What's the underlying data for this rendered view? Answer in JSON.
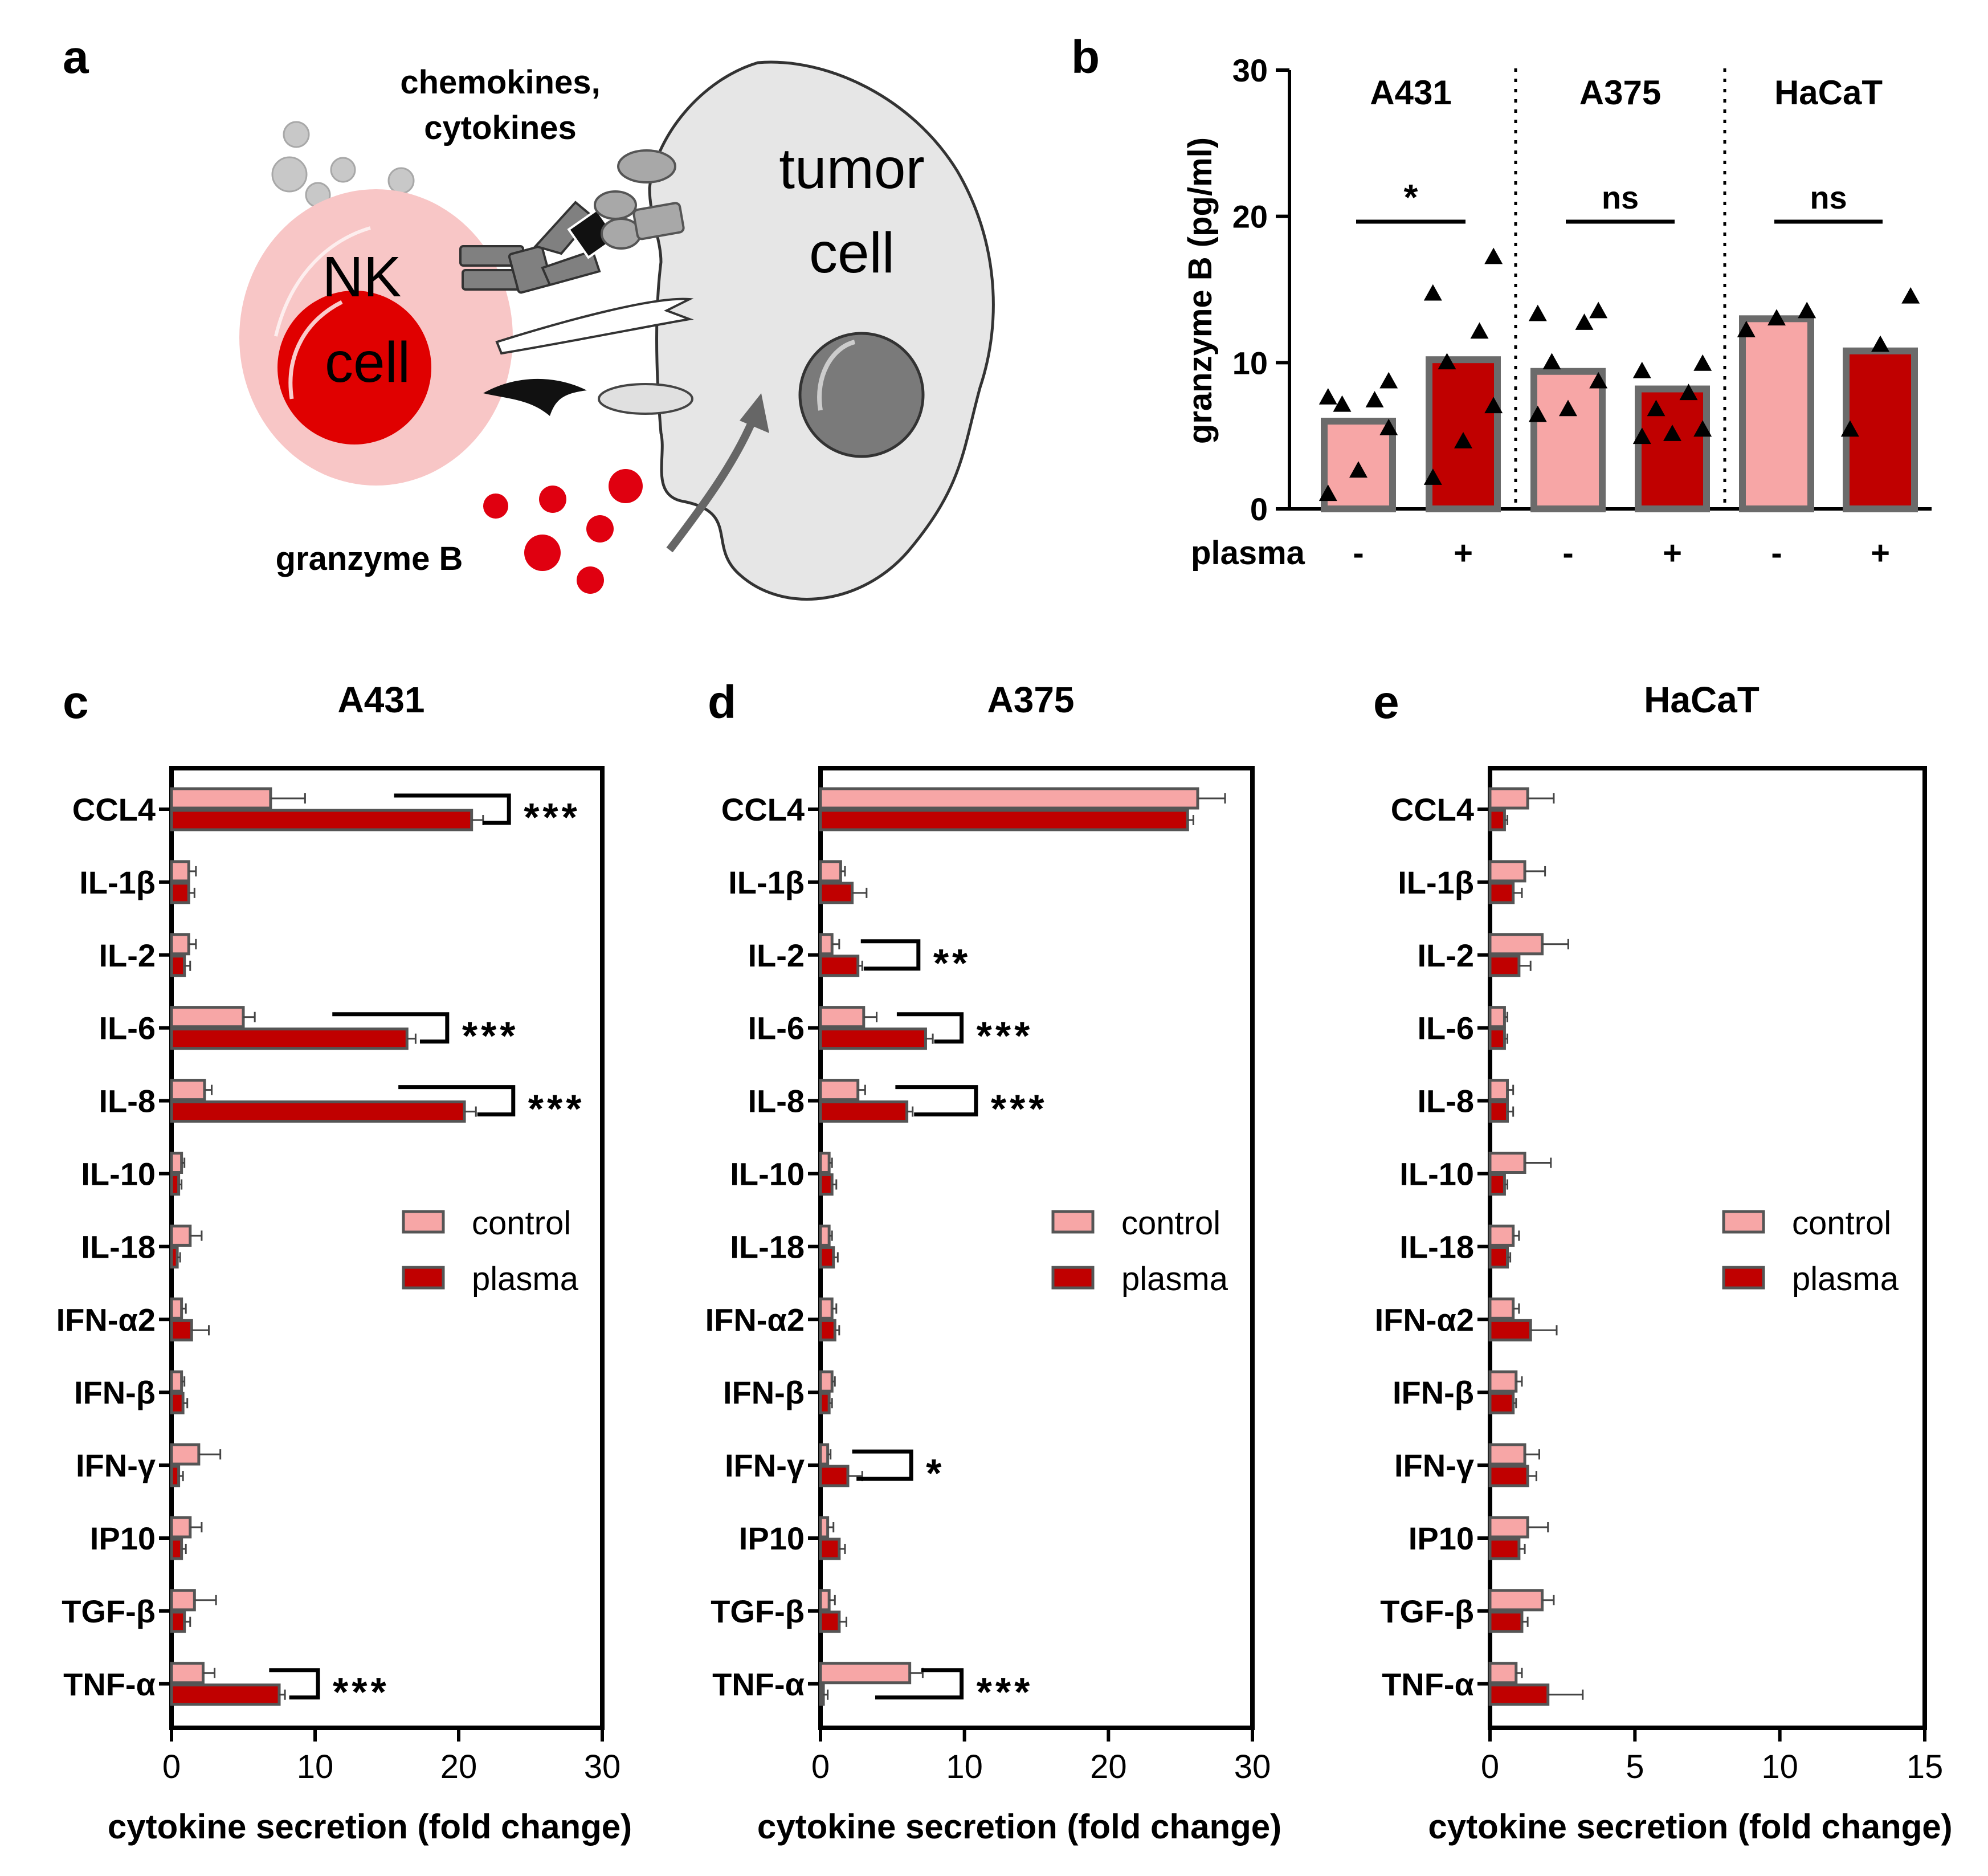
{
  "colors": {
    "control": "#f7a6a6",
    "plasma": "#c00000",
    "bar_edge": "#6b6b6b",
    "axis": "#000000",
    "nk_outer": "#f8c6c6",
    "nk_nucleus": "#e00000",
    "granzyme": "#e00010",
    "tumor": "#e6e6e6",
    "tumor_nucleus": "#7a7a7a",
    "cytokine_dots": "#c8c8c8",
    "receptor_grey": "#7f7f7f",
    "arrow": "#666666"
  },
  "panel_a": {
    "letter": "a",
    "nk_label_1": "NK",
    "nk_label_2": "cell",
    "tumor_label_1": "tumor",
    "tumor_label_2": "cell",
    "chemokines_1": "chemokines,",
    "chemokines_2": "cytokines",
    "granzyme_label": "granzyme B",
    "icons": [
      "cytokine-dots-icon",
      "receptor-icon",
      "ligand-icon",
      "granzyme-dots-icon",
      "arrow-icon"
    ]
  },
  "chart_data": [
    {
      "panel": "b",
      "type": "bar",
      "ylabel": "granzyme B (pg/ml)",
      "ylim": [
        0,
        30
      ],
      "yticks": [
        0,
        10,
        20,
        30
      ],
      "xrow_label": "plasma",
      "groups": [
        {
          "name": "A431",
          "signif": "*",
          "bars": [
            {
              "plasma": "-",
              "value": 6.0,
              "points": [
                1.1,
                2.7,
                5.6,
                7.2,
                7.5,
                7.7,
                8.8
              ]
            },
            {
              "plasma": "+",
              "value": 10.2,
              "points": [
                2.2,
                4.7,
                7.1,
                10.1,
                12.2,
                14.8,
                17.3
              ]
            }
          ]
        },
        {
          "name": "A375",
          "signif": "ns",
          "bars": [
            {
              "plasma": "-",
              "value": 9.4,
              "points": [
                6.5,
                6.9,
                8.8,
                10.1,
                12.8,
                13.4,
                13.6
              ]
            },
            {
              "plasma": "+",
              "value": 8.2,
              "points": [
                5.0,
                5.2,
                5.5,
                6.9,
                8.0,
                9.5,
                10.0
              ]
            }
          ]
        },
        {
          "name": "HaCaT",
          "signif": "ns",
          "bars": [
            {
              "plasma": "-",
              "value": 13.0,
              "points": [
                12.3,
                13.1,
                13.6
              ]
            },
            {
              "plasma": "+",
              "value": 10.8,
              "points": [
                5.5,
                11.3,
                14.6
              ]
            }
          ]
        }
      ]
    },
    {
      "panel": "c",
      "type": "bar",
      "orientation": "horizontal",
      "title": "A431",
      "xlabel": "cytokine secretion (fold change)",
      "xlim": [
        0,
        30
      ],
      "xticks": [
        0,
        10,
        20,
        30
      ],
      "categories": [
        "CCL4",
        "IL-1β",
        "IL-2",
        "IL-6",
        "IL-8",
        "IL-10",
        "IL-18",
        "IFN-α2",
        "IFN-β",
        "IFN-γ",
        "IP10",
        "TGF-β",
        "TNF-α"
      ],
      "series": [
        {
          "name": "control",
          "values": [
            6.9,
            1.2,
            1.2,
            5.0,
            2.3,
            0.7,
            1.3,
            0.7,
            0.7,
            1.9,
            1.3,
            1.6,
            2.2
          ],
          "errors": [
            2.4,
            0.5,
            0.5,
            0.8,
            0.5,
            0.2,
            0.8,
            0.3,
            0.2,
            1.5,
            0.8,
            1.5,
            0.8
          ]
        },
        {
          "name": "plasma",
          "values": [
            20.9,
            1.2,
            0.9,
            16.4,
            20.4,
            0.5,
            0.4,
            1.4,
            0.8,
            0.5,
            0.7,
            0.9,
            7.5
          ],
          "errors": [
            0.8,
            0.4,
            0.4,
            0.6,
            0.8,
            0.2,
            0.2,
            1.2,
            0.3,
            0.3,
            0.3,
            0.4,
            0.4
          ]
        }
      ],
      "legend": [
        "control",
        "plasma"
      ],
      "annotations": [
        {
          "category": "CCL4",
          "text": "***"
        },
        {
          "category": "IL-6",
          "text": "***"
        },
        {
          "category": "IL-8",
          "text": "***"
        },
        {
          "category": "TNF-α",
          "text": "***"
        }
      ]
    },
    {
      "panel": "d",
      "type": "bar",
      "orientation": "horizontal",
      "title": "A375",
      "xlabel": "cytokine secretion (fold change)",
      "xlim": [
        0,
        30
      ],
      "xticks": [
        0,
        10,
        20,
        30
      ],
      "categories": [
        "CCL4",
        "IL-1β",
        "IL-2",
        "IL-6",
        "IL-8",
        "IL-10",
        "IL-18",
        "IFN-α2",
        "IFN-β",
        "IFN-γ",
        "IP10",
        "TGF-β",
        "TNF-α"
      ],
      "series": [
        {
          "name": "control",
          "values": [
            26.2,
            1.4,
            0.8,
            3.0,
            2.6,
            0.6,
            0.6,
            0.8,
            0.8,
            0.5,
            0.5,
            0.6,
            6.2
          ],
          "errors": [
            1.9,
            0.3,
            0.5,
            0.9,
            0.5,
            0.2,
            0.2,
            0.3,
            0.2,
            0.2,
            0.4,
            0.4,
            0.9
          ]
        },
        {
          "name": "plasma",
          "values": [
            25.5,
            2.2,
            2.6,
            7.3,
            6.0,
            0.8,
            0.9,
            1.0,
            0.6,
            1.9,
            1.3,
            1.3,
            0.2
          ],
          "errors": [
            0.4,
            1.0,
            0.3,
            0.5,
            0.4,
            0.3,
            0.3,
            0.3,
            0.2,
            1.0,
            0.4,
            0.5,
            0.3
          ]
        }
      ],
      "legend": [
        "control",
        "plasma"
      ],
      "annotations": [
        {
          "category": "IL-2",
          "text": "**"
        },
        {
          "category": "IL-6",
          "text": "***"
        },
        {
          "category": "IL-8",
          "text": "***"
        },
        {
          "category": "IFN-γ",
          "text": "*"
        },
        {
          "category": "TNF-α",
          "text": "***"
        }
      ]
    },
    {
      "panel": "e",
      "type": "bar",
      "orientation": "horizontal",
      "title": "HaCaT",
      "xlabel": "cytokine secretion (fold change)",
      "xlim": [
        0,
        15
      ],
      "xticks": [
        0,
        5,
        10,
        15
      ],
      "categories": [
        "CCL4",
        "IL-1β",
        "IL-2",
        "IL-6",
        "IL-8",
        "IL-10",
        "IL-18",
        "IFN-α2",
        "IFN-β",
        "IFN-γ",
        "IP10",
        "TGF-β",
        "TNF-α"
      ],
      "series": [
        {
          "name": "control",
          "values": [
            1.3,
            1.2,
            1.8,
            0.5,
            0.6,
            1.2,
            0.8,
            0.8,
            0.9,
            1.2,
            1.3,
            1.8,
            0.9
          ],
          "errors": [
            0.9,
            0.7,
            0.9,
            0.1,
            0.2,
            0.9,
            0.2,
            0.2,
            0.2,
            0.5,
            0.7,
            0.4,
            0.2
          ]
        },
        {
          "name": "plasma",
          "values": [
            0.5,
            0.8,
            1.0,
            0.5,
            0.6,
            0.5,
            0.6,
            1.4,
            0.8,
            1.3,
            1.0,
            1.1,
            2.0
          ],
          "errors": [
            0.1,
            0.3,
            0.4,
            0.1,
            0.2,
            0.1,
            0.1,
            0.9,
            0.1,
            0.3,
            0.2,
            0.2,
            1.2
          ]
        }
      ],
      "legend": [
        "control",
        "plasma"
      ],
      "annotations": []
    }
  ],
  "panel_letters": [
    "b",
    "c",
    "d",
    "e"
  ]
}
